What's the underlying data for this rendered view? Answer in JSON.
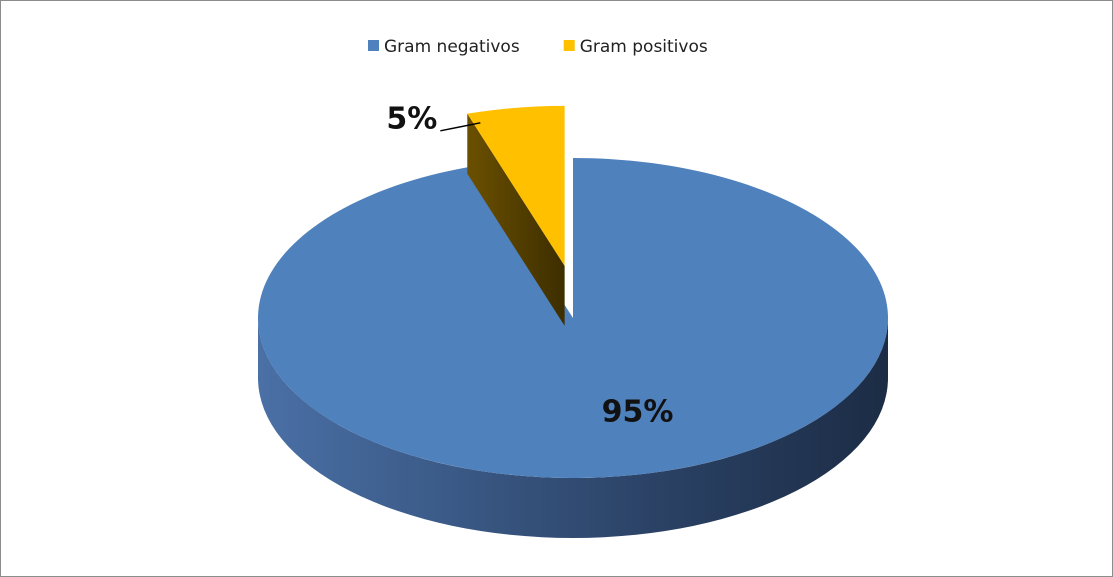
{
  "chart_data": {
    "type": "pie",
    "categories": [
      "Gram negativos",
      "Gram positivos"
    ],
    "values": [
      95,
      5
    ],
    "value_labels": [
      "95%",
      "5%"
    ],
    "colors": [
      "#4f81bd",
      "#ffc000"
    ],
    "explode": [
      0,
      1
    ],
    "legend": "top"
  }
}
